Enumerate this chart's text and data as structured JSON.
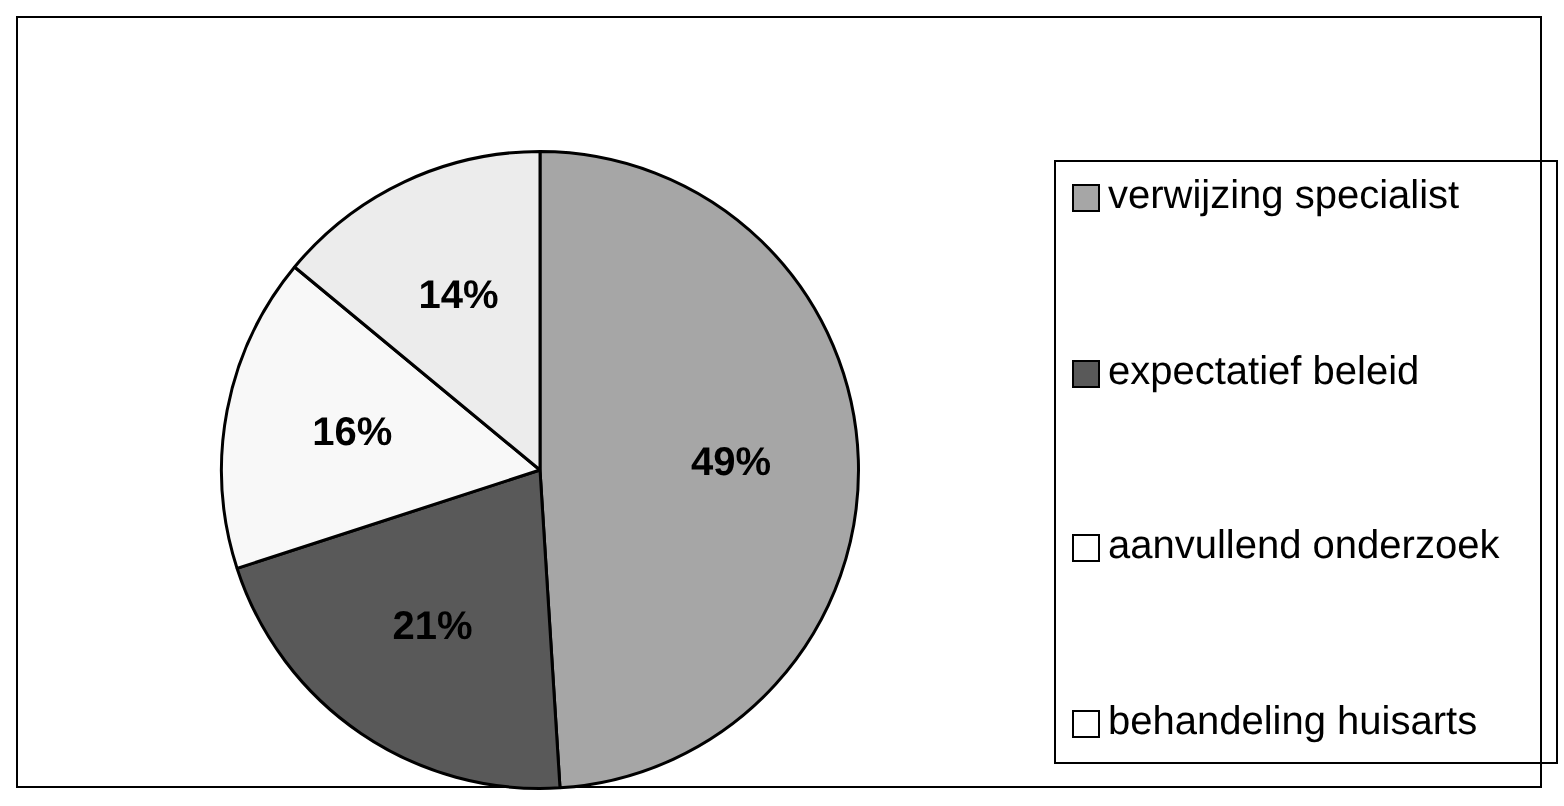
{
  "chart_data": {
    "type": "pie",
    "categories": [
      "verwijzing specialist",
      "expectatief beleid",
      "aanvullend onderzoek",
      "behandeling huisarts"
    ],
    "values": [
      49,
      21,
      16,
      14
    ],
    "colors": [
      "#a6a6a6",
      "#595959",
      "#f8f8f8",
      "#ececec"
    ],
    "value_labels": [
      "49%",
      "21%",
      "16%",
      "14%"
    ],
    "legend": "right"
  }
}
